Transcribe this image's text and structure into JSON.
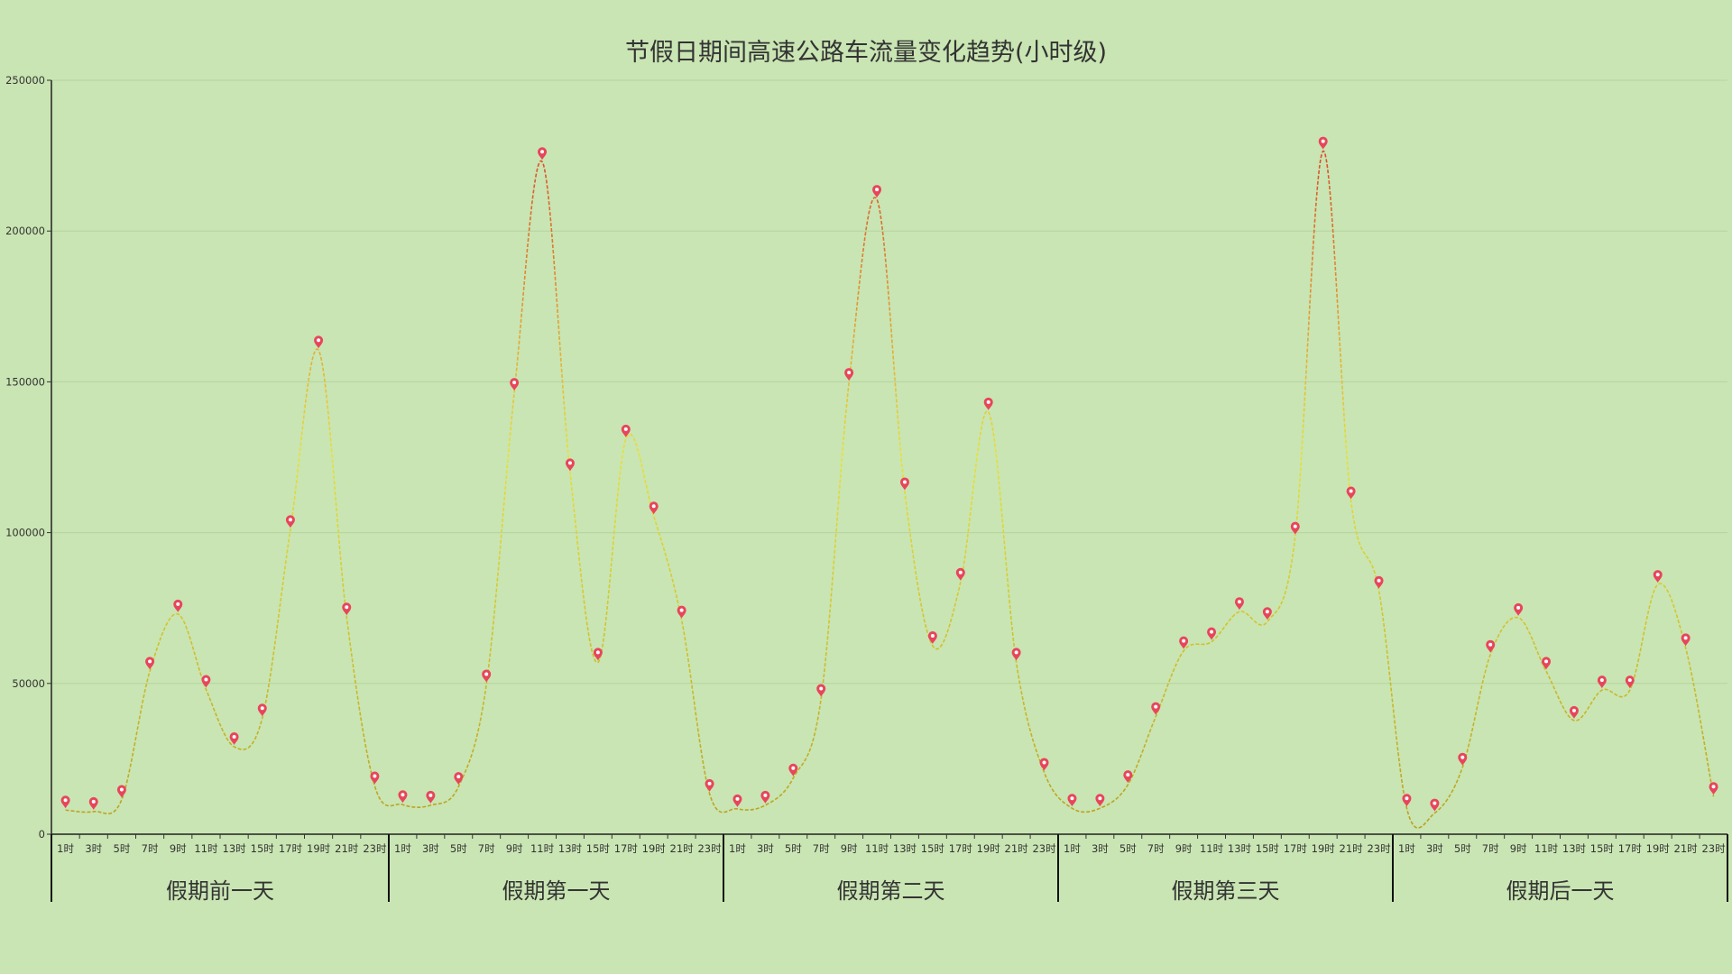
{
  "chart_data": {
    "type": "line",
    "title": "节假日期间高速公路车流量变化趋势(小时级)",
    "xlabel": "",
    "ylabel": "",
    "ylim": [
      0,
      250000
    ],
    "yticks": [
      0,
      50000,
      100000,
      150000,
      200000,
      250000
    ],
    "ytick_labels": [
      "0",
      "50000",
      "100000",
      "150000",
      "200000",
      "250000"
    ],
    "grid": true,
    "smooth": true,
    "line_style": "dashed",
    "gradient_colors": {
      "low": "#b8a020",
      "mid": "#e8e03a",
      "high": "#d94a2c"
    },
    "marker_color": "#e8455a",
    "hour_labels": [
      "1时",
      "3时",
      "5时",
      "7时",
      "9时",
      "11时",
      "13时",
      "15时",
      "17时",
      "19时",
      "21时",
      "23时"
    ],
    "groups": [
      "假期前一天",
      "假期第一天",
      "假期第二天",
      "假期第三天",
      "假期后一天"
    ],
    "values": [
      8000,
      7500,
      11500,
      54000,
      73000,
      48000,
      29000,
      38500,
      101000,
      160500,
      72000,
      16000,
      9800,
      9600,
      15800,
      49800,
      146500,
      223000,
      119800,
      57000,
      131000,
      105500,
      71000,
      13500,
      8400,
      9600,
      18600,
      45000,
      149800,
      210500,
      113500,
      62500,
      83500,
      140000,
      57000,
      20500,
      8600,
      8600,
      16400,
      39000,
      60800,
      63800,
      73800,
      70500,
      98800,
      226500,
      110500,
      80800,
      8600,
      7000,
      22200,
      59600,
      71800,
      54000,
      37700,
      47800,
      47800,
      82800,
      61800,
      12500
    ]
  }
}
